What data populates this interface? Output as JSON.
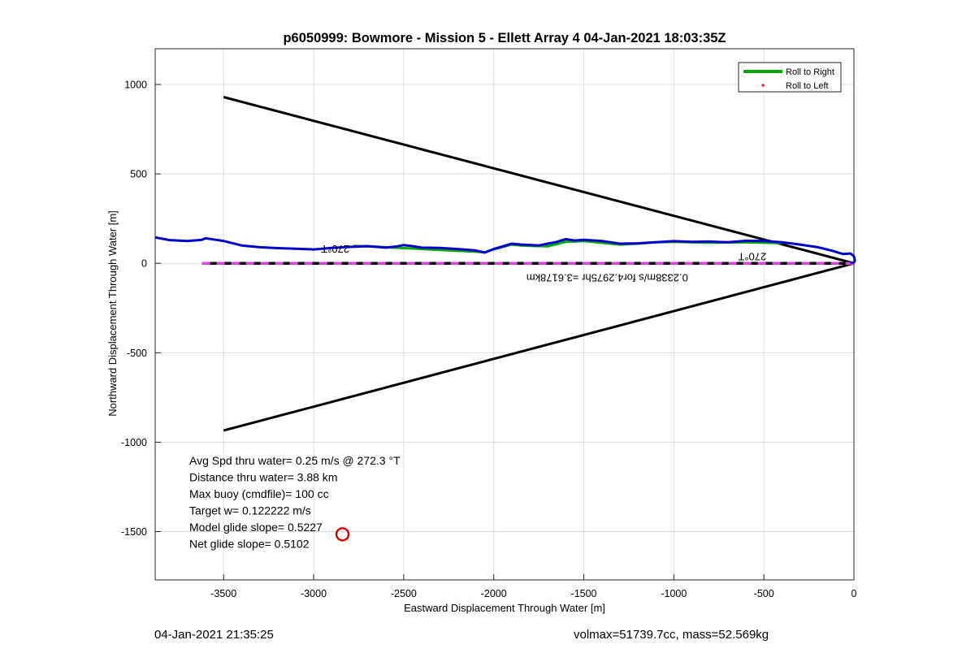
{
  "chart_data": {
    "type": "line",
    "title": "p6050999: Bowmore - Mission 5 - Ellett Array 4 04-Jan-2021 18:03:35Z",
    "xlabel": "Eastward Displacement Through Water [m]",
    "ylabel": "Northward Displacement Through Water [m]",
    "xlim": [
      -3880,
      0
    ],
    "ylim": [
      -1770,
      1200
    ],
    "xticks": [
      -3500,
      -3000,
      -2500,
      -2000,
      -1500,
      -1000,
      -500,
      0
    ],
    "yticks": [
      -1500,
      -1000,
      -500,
      0,
      500,
      1000
    ],
    "xtick_labels": [
      "-3500",
      "-3000",
      "-2500",
      "-2000",
      "-1500",
      "-1000",
      "-500",
      "0"
    ],
    "ytick_labels": [
      "-1500",
      "-1000",
      "-500",
      "0",
      "500",
      "1000"
    ],
    "grid": true,
    "legend_position": "top-right",
    "legend": [
      {
        "label": "Roll to Right",
        "color": "#00aa00",
        "style": "line"
      },
      {
        "label": "Roll to Left",
        "color": "#ff0000",
        "style": "dot"
      }
    ],
    "series": [
      {
        "name": "Roll to Right",
        "color": "#00aa00",
        "x": [
          -2780,
          -2700,
          -2600,
          -2500,
          -2400,
          -2300,
          -2200,
          -2100,
          -2050,
          -2000,
          -1950,
          -1900,
          -1850,
          -1800,
          -1700,
          -1600,
          -1500,
          -1400,
          -1300,
          -1200,
          -1100,
          -1000,
          -900,
          -800,
          -700,
          -600,
          -500,
          -400
        ],
        "y": [
          97,
          95,
          90,
          85,
          80,
          75,
          70,
          65,
          62,
          78,
          92,
          105,
          100,
          98,
          95,
          120,
          125,
          115,
          105,
          110,
          118,
          120,
          118,
          115,
          117,
          118,
          115,
          113
        ]
      }
    ],
    "track": {
      "color": "#0000cc",
      "x": [
        -3880,
        -3800,
        -3700,
        -3620,
        -3600,
        -3500,
        -3400,
        -3300,
        -3200,
        -3100,
        -3000,
        -2900,
        -2800,
        -2700,
        -2600,
        -2550,
        -2500,
        -2450,
        -2400,
        -2300,
        -2200,
        -2100,
        -2050,
        -2000,
        -1950,
        -1900,
        -1850,
        -1800,
        -1750,
        -1700,
        -1650,
        -1600,
        -1550,
        -1500,
        -1400,
        -1300,
        -1200,
        -1100,
        -1000,
        -900,
        -800,
        -700,
        -600,
        -500,
        -400,
        -300,
        -200,
        -120,
        -60,
        -20,
        0,
        5,
        0,
        -20
      ],
      "y": [
        145,
        130,
        125,
        132,
        140,
        125,
        100,
        90,
        85,
        82,
        78,
        86,
        92,
        96,
        88,
        93,
        102,
        96,
        88,
        86,
        80,
        72,
        60,
        80,
        95,
        110,
        105,
        103,
        100,
        110,
        120,
        135,
        128,
        132,
        125,
        110,
        112,
        118,
        124,
        120,
        122,
        118,
        126,
        125,
        118,
        105,
        90,
        70,
        52,
        55,
        40,
        15,
        5,
        3
      ]
    },
    "cone_lines": [
      {
        "x": [
          -3500,
          0
        ],
        "y": [
          930,
          0
        ]
      },
      {
        "x": [
          -3500,
          0
        ],
        "y": [
          -935,
          0
        ]
      }
    ],
    "heading_line": {
      "x": [
        -3620,
        0
      ],
      "y": [
        0,
        0
      ]
    },
    "marker": {
      "x": -2840,
      "y": -1515,
      "color": "#dd0000"
    },
    "annotations": [
      {
        "text": "270°T",
        "x": -2880,
        "y": 100,
        "rotated": true
      },
      {
        "text": "270°T",
        "x": -565,
        "y": 58,
        "rotated": true
      },
      {
        "text": "0.2338m/s for4.2975hr =3.6178km",
        "x": -1370,
        "y": -60,
        "rotated": true
      }
    ],
    "stats": [
      "Avg Spd thru water=  0.25 m/s @ 272.3 °T",
      "Distance thru water=  3.88 km",
      "Max buoy (cmdfile)= 100 cc",
      "Target w= 0.122222 m/s",
      "Model glide slope= 0.5227",
      "Net glide slope= 0.5102"
    ]
  },
  "footer": {
    "left": "04-Jan-2021 21:35:25",
    "right": "volmax=51739.7cc, mass=52.569kg"
  }
}
